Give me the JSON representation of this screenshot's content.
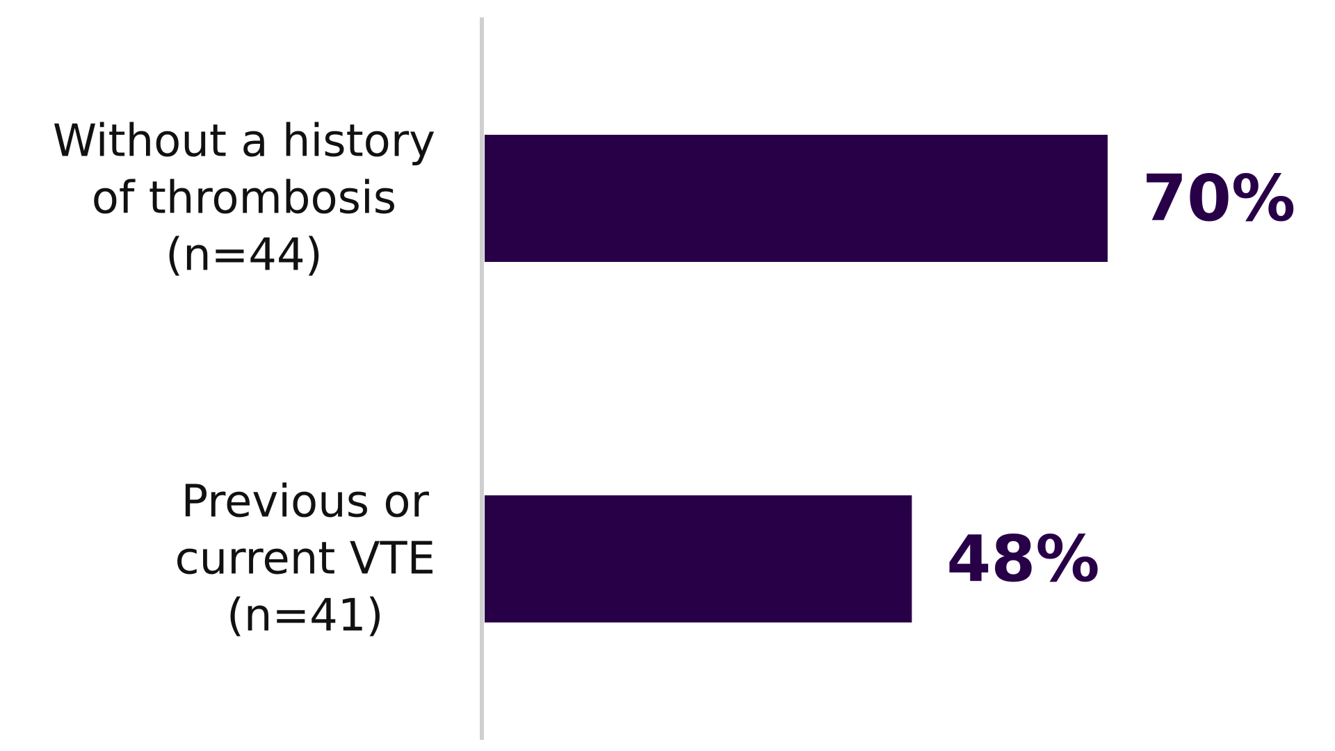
{
  "chart_data": {
    "type": "bar",
    "orientation": "horizontal",
    "categories": [
      [
        "Without a history",
        "of thrombosis",
        "(n=44)"
      ],
      [
        "Previous or",
        "current VTE",
        "(n=41)"
      ]
    ],
    "values": [
      70,
      48
    ],
    "value_labels": [
      "70%",
      "48%"
    ],
    "xlim": [
      0,
      100
    ],
    "grid": false,
    "legend": "none",
    "title": "",
    "xlabel": "",
    "ylabel": ""
  },
  "colors": {
    "bar": "#280048",
    "value_label": "#280048",
    "axis": "#d0d0d0",
    "category_text": "#111111"
  }
}
